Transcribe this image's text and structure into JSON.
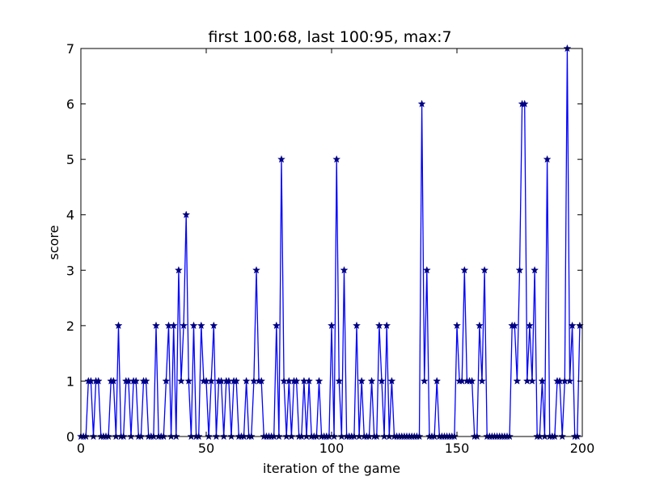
{
  "chart_data": {
    "type": "line",
    "title": "first 100:68, last 100:95, max:7",
    "xlabel": "iteration of the game",
    "ylabel": "score",
    "xlim": [
      0,
      200
    ],
    "ylim": [
      0,
      7
    ],
    "x_ticks": [
      "0",
      "50",
      "100",
      "150",
      "200"
    ],
    "y_ticks": [
      "0",
      "1",
      "2",
      "3",
      "4",
      "5",
      "6",
      "7"
    ],
    "grid": false,
    "marker": "star",
    "line_color": "#0000ff",
    "marker_color": "#000080",
    "series": [
      {
        "name": "score",
        "values": [
          0,
          0,
          0,
          1,
          1,
          0,
          1,
          1,
          0,
          0,
          0,
          0,
          1,
          1,
          0,
          2,
          0,
          0,
          1,
          1,
          0,
          1,
          1,
          0,
          0,
          1,
          1,
          0,
          0,
          0,
          2,
          0,
          0,
          0,
          1,
          2,
          0,
          2,
          0,
          3,
          1,
          2,
          4,
          1,
          0,
          2,
          0,
          0,
          2,
          1,
          1,
          0,
          1,
          2,
          0,
          1,
          1,
          0,
          1,
          1,
          0,
          1,
          1,
          0,
          0,
          0,
          1,
          0,
          0,
          1,
          3,
          1,
          1,
          0,
          0,
          0,
          0,
          0,
          2,
          0,
          5,
          1,
          0,
          1,
          0,
          1,
          1,
          0,
          0,
          1,
          0,
          1,
          0,
          0,
          0,
          1,
          0,
          0,
          0,
          0,
          2,
          0,
          5,
          1,
          0,
          3,
          0,
          0,
          0,
          0,
          2,
          0,
          1,
          0,
          0,
          0,
          1,
          0,
          0,
          2,
          1,
          0,
          2,
          0,
          1,
          0,
          0,
          0,
          0,
          0,
          0,
          0,
          0,
          0,
          0,
          0,
          6,
          1,
          3,
          0,
          0,
          0,
          1,
          0,
          0,
          0,
          0,
          0,
          0,
          0,
          2,
          1,
          1,
          3,
          1,
          1,
          1,
          0,
          0,
          2,
          1,
          3,
          0,
          0,
          0,
          0,
          0,
          0,
          0,
          0,
          0,
          0,
          2,
          2,
          1,
          3,
          6,
          6,
          1,
          2,
          1,
          3,
          0,
          0,
          1,
          0,
          5,
          0,
          0,
          0,
          1,
          1,
          0,
          1,
          7,
          1,
          2,
          0,
          0,
          2
        ]
      }
    ]
  }
}
